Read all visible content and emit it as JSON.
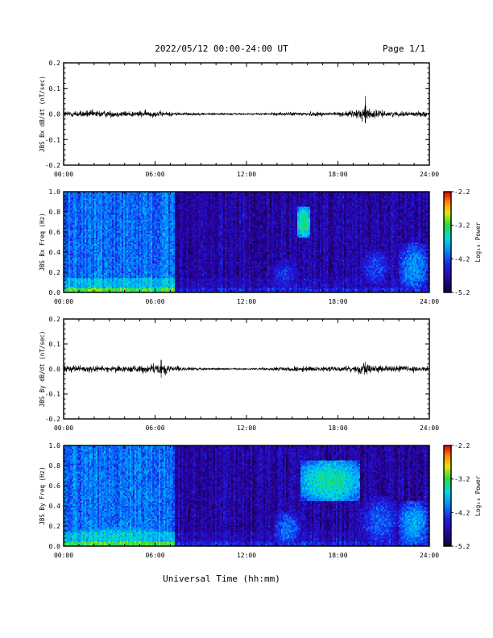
{
  "header": {
    "title": "2022/05/12  00:00-24:00 UT",
    "page": "Page 1/1"
  },
  "xaxis": {
    "label": "Universal Time (hh:mm)",
    "range_hours": [
      0,
      24
    ],
    "ticks": [
      "00:00",
      "06:00",
      "12:00",
      "18:00",
      "24:00"
    ]
  },
  "colorbar": {
    "label": "Log₁₀ Power",
    "range": [
      -5.2,
      -2.2
    ],
    "ticks": [
      "-2.2",
      "-3.2",
      "-4.2",
      "-5.2"
    ]
  },
  "chart_data": [
    {
      "type": "line",
      "ylabel": "JBS Bx dB/dt (nT/sec)",
      "ylim": [
        -0.2,
        0.2
      ],
      "yticks": [
        "0.2",
        "0.1",
        "0.0",
        "-0.1",
        "-0.2"
      ],
      "x_hours": [
        0,
        1,
        2,
        3,
        4,
        5,
        6,
        7,
        8,
        9,
        10,
        11,
        12,
        13,
        14,
        15,
        16,
        17,
        18,
        19,
        19.8,
        20,
        21,
        22,
        23,
        24
      ],
      "amplitude": [
        0.012,
        0.013,
        0.014,
        0.012,
        0.011,
        0.012,
        0.012,
        0.008,
        0.006,
        0.005,
        0.004,
        0.004,
        0.003,
        0.004,
        0.006,
        0.007,
        0.008,
        0.008,
        0.008,
        0.012,
        0.03,
        0.02,
        0.01,
        0.009,
        0.009,
        0.01
      ],
      "peak": {
        "x_hour": 19.8,
        "value": 0.07
      }
    },
    {
      "type": "heatmap",
      "ylabel": "JBS Bx Freq (Hz)",
      "ylim": [
        0.0,
        1.0
      ],
      "yticks": [
        "1.0",
        "0.8",
        "0.6",
        "0.4",
        "0.2",
        "0.0"
      ],
      "quiet_period_hours": [
        7.3,
        24
      ],
      "features": [
        {
          "x_hours": [
            15.3,
            16.2
          ],
          "freq_hz": [
            0.55,
            0.85
          ],
          "log_power": -3.3
        },
        {
          "x_hours": [
            13.5,
            15.5
          ],
          "freq_hz": [
            0.0,
            0.35
          ],
          "log_power": -4.3
        },
        {
          "x_hours": [
            19.5,
            21.5
          ],
          "freq_hz": [
            0.05,
            0.45
          ],
          "log_power": -4.2
        },
        {
          "x_hours": [
            22.0,
            24.0
          ],
          "freq_hz": [
            0.0,
            0.5
          ],
          "log_power": -3.9
        }
      ]
    },
    {
      "type": "line",
      "ylabel": "JBS By dB/dt (nT/sec)",
      "ylim": [
        -0.2,
        0.2
      ],
      "yticks": [
        "0.2",
        "0.1",
        "0.0",
        "-0.1",
        "-0.2"
      ],
      "x_hours": [
        0,
        1,
        2,
        3,
        4,
        5,
        6,
        6.5,
        7,
        8,
        9,
        10,
        11,
        12,
        13,
        14,
        15,
        16,
        17,
        18,
        19,
        19.8,
        20,
        21,
        22,
        23,
        24
      ],
      "amplitude": [
        0.012,
        0.013,
        0.013,
        0.012,
        0.012,
        0.015,
        0.018,
        0.02,
        0.012,
        0.007,
        0.005,
        0.004,
        0.003,
        0.003,
        0.005,
        0.007,
        0.009,
        0.01,
        0.009,
        0.009,
        0.012,
        0.025,
        0.015,
        0.012,
        0.012,
        0.013,
        0.012
      ],
      "peak": {
        "x_hour": 6.4,
        "value": 0.05
      }
    },
    {
      "type": "heatmap",
      "ylabel": "JBS By Freq (Hz)",
      "ylim": [
        0.0,
        1.0
      ],
      "yticks": [
        "1.0",
        "0.8",
        "0.6",
        "0.4",
        "0.2",
        "0.0"
      ],
      "quiet_period_hours": [
        7.3,
        24
      ],
      "features": [
        {
          "x_hours": [
            15.5,
            19.5
          ],
          "freq_hz": [
            0.45,
            0.85
          ],
          "log_power": -3.4
        },
        {
          "x_hours": [
            13.8,
            15.5
          ],
          "freq_hz": [
            0.0,
            0.35
          ],
          "log_power": -4.0
        },
        {
          "x_hours": [
            19.5,
            22.0
          ],
          "freq_hz": [
            0.0,
            0.5
          ],
          "log_power": -4.1
        },
        {
          "x_hours": [
            22.0,
            24.0
          ],
          "freq_hz": [
            0.0,
            0.45
          ],
          "log_power": -3.8
        },
        {
          "x_hours": [
            0.0,
            7.3
          ],
          "freq_hz": [
            0.0,
            0.2
          ],
          "log_power": -3.6
        }
      ]
    }
  ]
}
